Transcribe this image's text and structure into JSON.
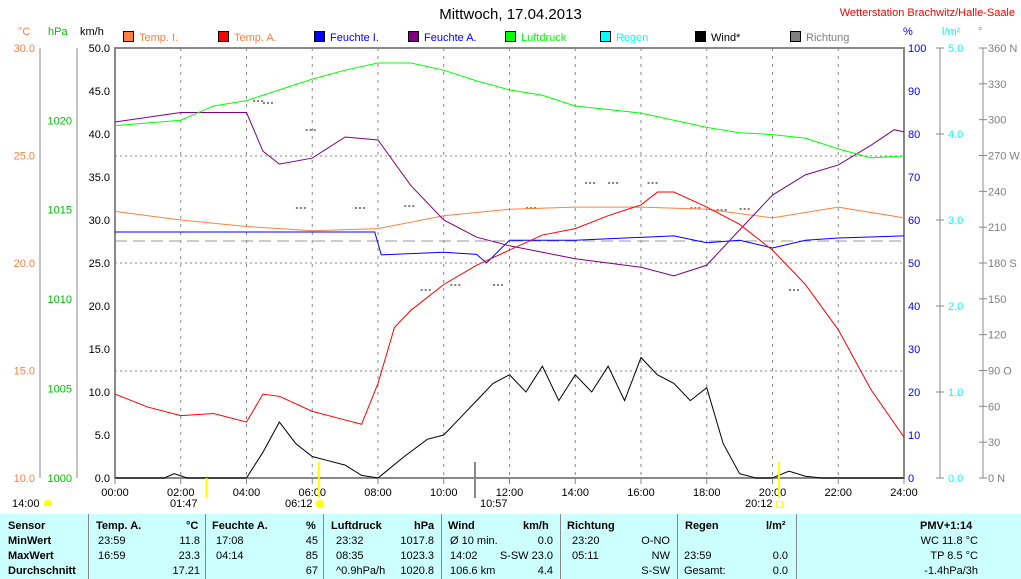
{
  "title": "Mittwoch, 17.04.2013",
  "station": "Wetterstation Brachwitz/Halle-Saale",
  "units": {
    "c": "°C",
    "hpa": "hPa",
    "kmh": "km/h",
    "pct": "%",
    "lm2": "l/m²",
    "deg": "°"
  },
  "legend": [
    {
      "label": "Temp. I.",
      "color": "#ff8040",
      "text": "#ff8040"
    },
    {
      "label": "Temp. A.",
      "color": "#ff0000",
      "text": "#ff8040"
    },
    {
      "label": "Feuchte I.",
      "color": "#0000ff",
      "text": "#0000ff"
    },
    {
      "label": "Feuchte A.",
      "color": "#800080",
      "text": "#0000ff"
    },
    {
      "label": "Luftdruck",
      "color": "#00ff00",
      "text": "#00ff00"
    },
    {
      "label": "Regen",
      "color": "#00ffff",
      "text": "#00ffff"
    },
    {
      "label": "Wind*",
      "color": "#000000",
      "text": "#000000"
    },
    {
      "label": "Richtung",
      "color": "#808080",
      "text": "#808080"
    }
  ],
  "sun": {
    "t1": "14:00",
    "t2": "01:47",
    "t3": "06:12",
    "t4": "10:57",
    "t5": "20:12"
  },
  "chart_data": {
    "type": "line",
    "title": "Mittwoch, 17.04.2013",
    "x_ticks": [
      "00:00",
      "02:00",
      "04:00",
      "06:00",
      "08:00",
      "10:00",
      "12:00",
      "14:00",
      "16:00",
      "18:00",
      "20:00",
      "22:00",
      "24:00"
    ],
    "xlim": [
      0,
      24
    ],
    "axes": {
      "temp": {
        "ticks": [
          "10.0",
          "15.0",
          "20.0",
          "25.0",
          "30.0"
        ],
        "lim": [
          10,
          30
        ]
      },
      "hpa": {
        "ticks": [
          "1000",
          "1005",
          "1010",
          "1015",
          "1020"
        ],
        "lim": [
          1000,
          1024
        ]
      },
      "kmh": {
        "ticks": [
          "0.0",
          "5.0",
          "10.0",
          "15.0",
          "20.0",
          "25.0",
          "30.0",
          "35.0",
          "40.0",
          "45.0",
          "50.0"
        ],
        "lim": [
          0,
          50
        ]
      },
      "pct": {
        "ticks": [
          "0",
          "10",
          "20",
          "30",
          "40",
          "50",
          "60",
          "70",
          "80",
          "90",
          "100"
        ],
        "lim": [
          0,
          100
        ]
      },
      "rain": {
        "ticks": [
          "0.0",
          "1.0",
          "2.0",
          "3.0",
          "4.0",
          "5.0"
        ],
        "lim": [
          0,
          5
        ]
      },
      "deg": {
        "ticks": [
          "0 N",
          "30",
          "60",
          "90 O",
          "120",
          "150",
          "180 S",
          "210",
          "240",
          "270 W",
          "300",
          "330",
          "360 N"
        ],
        "lim": [
          0,
          360
        ]
      }
    },
    "series": [
      {
        "name": "Temp. I.",
        "axis": "temp",
        "color": "#ff8040",
        "x": [
          0,
          2,
          4,
          6,
          8,
          10,
          12,
          14,
          16,
          18,
          20,
          22,
          24
        ],
        "y": [
          22.4,
          22.0,
          21.7,
          21.5,
          21.6,
          22.2,
          22.5,
          22.6,
          22.6,
          22.5,
          22.1,
          22.6,
          22.1
        ]
      },
      {
        "name": "Feuchte I.",
        "axis": "pct",
        "color": "#0000ff",
        "x": [
          0,
          4,
          7.9,
          8.1,
          10,
          11,
          11.3,
          12,
          14,
          17,
          18,
          19,
          20,
          21,
          22,
          24
        ],
        "y": [
          57.2,
          57.2,
          57.2,
          51.9,
          52.5,
          52,
          50,
          55.3,
          55.3,
          56.3,
          54.7,
          55.3,
          53.5,
          55.3,
          55.8,
          56.3
        ]
      },
      {
        "name": "Feuchte A.",
        "axis": "pct",
        "color": "#800080",
        "x": [
          0,
          2,
          4,
          4.5,
          5,
          6,
          7,
          8,
          9,
          10,
          11,
          12,
          13,
          14,
          15,
          16,
          17,
          18,
          19,
          20,
          21,
          22,
          23,
          23.7,
          24
        ],
        "y": [
          82.8,
          85,
          85,
          76,
          73,
          74.4,
          79.3,
          78.6,
          68,
          60,
          56,
          54,
          52.5,
          51,
          50,
          49,
          47,
          49.5,
          57.7,
          65.8,
          70.5,
          72.8,
          77.4,
          81,
          80.5
        ]
      },
      {
        "name": "Luftdruck",
        "axis": "hpa",
        "color": "#00ff00",
        "x": [
          0,
          2,
          3,
          4,
          5,
          6,
          7,
          8,
          9,
          10,
          11,
          12,
          13,
          14,
          15,
          16,
          17,
          18,
          19,
          20,
          21,
          22,
          23,
          24
        ],
        "y": [
          1019.7,
          1020,
          1020.8,
          1021.1,
          1021.7,
          1022.3,
          1022.8,
          1023.2,
          1023.2,
          1022.8,
          1022.2,
          1021.7,
          1021.4,
          1020.8,
          1020.6,
          1020.4,
          1020,
          1019.6,
          1019.3,
          1019.2,
          1019,
          1018.4,
          1017.9,
          1018
        ]
      },
      {
        "name": "Temp. A.",
        "axis": "temp",
        "color": "#ff0000",
        "x": [
          0,
          1,
          2,
          3,
          4,
          4.5,
          5,
          6,
          7,
          7.5,
          8,
          8.5,
          9,
          10,
          11,
          12,
          13,
          14,
          15,
          16,
          16.5,
          17,
          18,
          19,
          20,
          21,
          22,
          23,
          24
        ],
        "y": [
          13.9,
          13.3,
          12.9,
          13.0,
          12.6,
          13.9,
          13.8,
          13.1,
          12.7,
          12.5,
          14.4,
          17.0,
          17.8,
          19.0,
          19.9,
          20.6,
          21.3,
          21.6,
          22.2,
          22.7,
          23.3,
          23.3,
          22.6,
          21.8,
          20.6,
          19.0,
          16.9,
          14.1,
          11.9
        ]
      },
      {
        "name": "Wind*",
        "axis": "kmh",
        "color": "#000000",
        "x": [
          0,
          1.5,
          1.8,
          2.2,
          3,
          4,
          4.5,
          5,
          5.5,
          6,
          6.5,
          7,
          7.5,
          8,
          8.8,
          9.5,
          10,
          10.5,
          11,
          11.5,
          12,
          12.5,
          13,
          13.5,
          14,
          14.5,
          15,
          15.5,
          16,
          16.5,
          17,
          17.5,
          18,
          18.5,
          19,
          19.5,
          20,
          20.5,
          21,
          21.5,
          24
        ],
        "y": [
          0,
          0,
          0.5,
          0,
          0,
          0,
          3,
          6.5,
          4,
          2.5,
          2,
          1.5,
          0.3,
          0,
          2.5,
          4.5,
          5,
          7,
          9,
          11,
          12,
          10,
          13,
          9,
          12,
          10,
          13,
          9,
          14,
          12,
          11,
          9,
          10.5,
          4,
          0.5,
          0,
          0,
          0.8,
          0.2,
          0,
          0
        ]
      }
    ]
  },
  "table": {
    "headers": [
      "Sensor",
      "Temp. A.",
      "°C",
      "Feuchte A.",
      "%",
      "Luftdruck",
      "hPa",
      "Wind",
      "km/h",
      "Richtung",
      "Regen",
      "l/m²",
      "PMV+1:14"
    ],
    "rows": [
      {
        "label": "MinWert",
        "t_time": "23:59",
        "t_val": "11.8",
        "h_time": "17:08",
        "h_val": "45",
        "p_time": "23:32",
        "p_val": "1017.8",
        "w_time": "Ø 10 min.",
        "w_val": "0.0",
        "d_time": "23:20",
        "d_val": "O-NO",
        "r_time": "",
        "r_val": "",
        "x": "WC 11.8 °C"
      },
      {
        "label": "MaxWert",
        "t_time": "16:59",
        "t_val": "23.3",
        "h_time": "04:14",
        "h_val": "85",
        "p_time": "08:35",
        "p_val": "1023.3",
        "w_time": "14:02",
        "w_val": "S-SW 23.0",
        "d_time": "05:11",
        "d_val": "NW",
        "r_time": "23:59",
        "r_val": "0.0",
        "x": "TP 8.5 °C"
      },
      {
        "label": "Durchschnitt",
        "t_time": "",
        "t_val": "17.21",
        "h_time": "",
        "h_val": "67",
        "p_time": "^0.9hPa/h",
        "p_val": "1020.8",
        "w_time": "106.6 km",
        "w_val": "4.4",
        "d_time": "",
        "d_val": "S-SW",
        "r_time": "Gesamt:",
        "r_val": "0.0",
        "x": "-1.4hPa/3h"
      }
    ]
  }
}
